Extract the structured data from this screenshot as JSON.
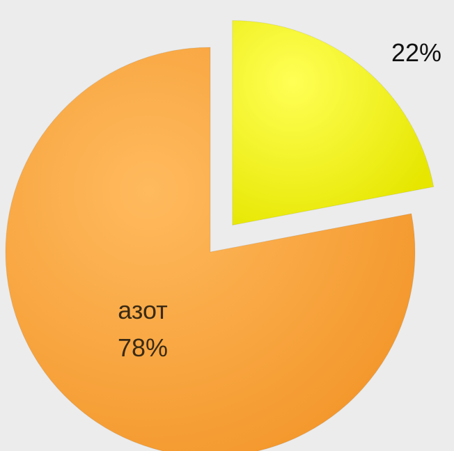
{
  "chart_data": {
    "type": "pie",
    "slices": [
      {
        "category": "",
        "value": 22,
        "value_label": "22%",
        "color": "#f5f500",
        "exploded": true,
        "label_color": "#111111"
      },
      {
        "category": "азот",
        "value": 78,
        "value_label": "78%",
        "color": "#f9a13a",
        "exploded": false,
        "label_color": "#3a2a14"
      }
    ],
    "legend": "none"
  }
}
